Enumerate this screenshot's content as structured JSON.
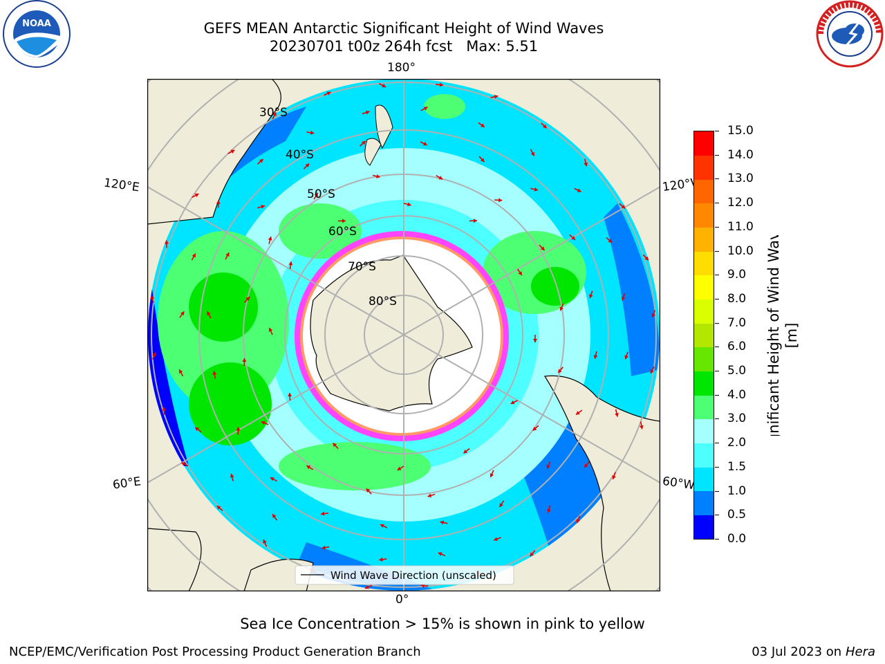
{
  "header": {
    "title_line1": "GEFS MEAN Antarctic Significant Height of Wind Waves",
    "title_line2": "20230701 t00z 264h fcst   Max: 5.51"
  },
  "logos": {
    "left": "NOAA",
    "right": "NATIONAL WEATHER SERVICE"
  },
  "map": {
    "projection": "south-polar-stereographic",
    "longitude_labels": {
      "top": "180°",
      "bottom": "0°",
      "upper_left": "120°E",
      "lower_left": "60°E",
      "upper_right": "120°W",
      "lower_right": "60°W"
    },
    "latitude_labels": [
      "30°S",
      "40°S",
      "50°S",
      "60°S",
      "70°S",
      "80°S"
    ],
    "legend_label": "Wind Wave Direction (unscaled)",
    "colors": {
      "land": "#efedda",
      "coast": "#000000",
      "grid": "#b0b0b0",
      "arrow": "#e00000",
      "ice_pink": "#ff44ff",
      "ice_yellow": "#ffd400"
    }
  },
  "colorbar": {
    "label": "Significant Height of Wind Waves [m]",
    "ticks": [
      "0.0",
      "0.5",
      "1.0",
      "1.5",
      "2.0",
      "3.0",
      "4.0",
      "5.0",
      "6.0",
      "7.0",
      "8.0",
      "9.0",
      "10.0",
      "11.0",
      "12.0",
      "13.0",
      "14.0",
      "15.0"
    ],
    "colors": [
      "#0000ff",
      "#0080ff",
      "#00e5ff",
      "#4dffff",
      "#a6ffff",
      "#4dff73",
      "#00e600",
      "#66e600",
      "#b3e600",
      "#d9ff00",
      "#ffff00",
      "#ffdd00",
      "#ffb300",
      "#ff8800",
      "#ff6600",
      "#ff3300",
      "#ff0000"
    ]
  },
  "footer": {
    "note": "Sea Ice Concentration > 15% is shown in pink to yellow",
    "left": "NCEP/EMC/Verification Post Processing Product Generation Branch",
    "right_date": "03 Jul 2023 on ",
    "right_machine": "Hera"
  }
}
